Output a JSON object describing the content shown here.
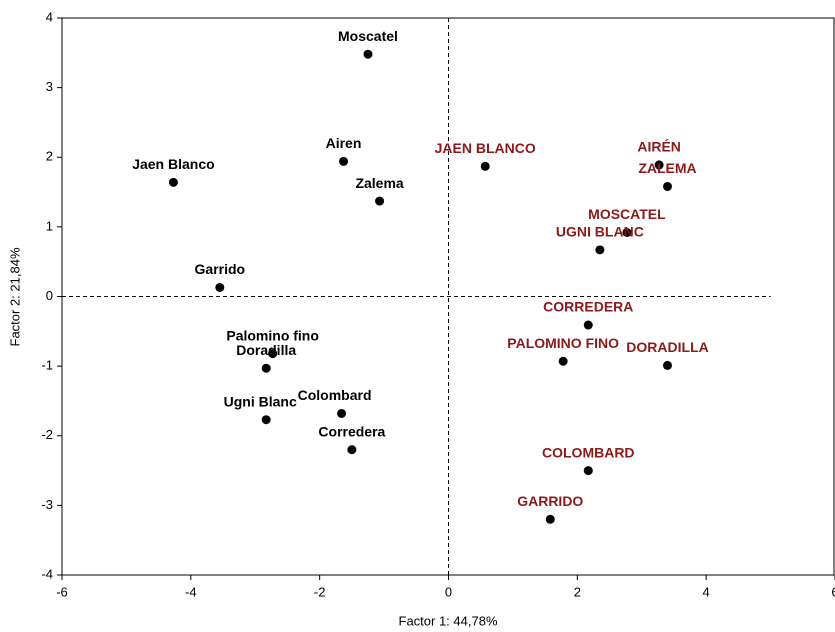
{
  "chart_data": {
    "type": "scatter",
    "xlabel": "Factor 1: 44,78%",
    "ylabel": "Factor 2: 21,84%",
    "xlim": [
      -6,
      6
    ],
    "ylim": [
      -4,
      4
    ],
    "xticks": [
      -6,
      -4,
      -2,
      0,
      2,
      4,
      6
    ],
    "yticks": [
      -4,
      -3,
      -2,
      -1,
      0,
      1,
      2,
      3,
      4
    ],
    "series": [
      {
        "color": "#000000",
        "labels": [
          "Moscatel",
          "Airen",
          "Zalema",
          "Jaen Blanco",
          "Garrido",
          "Palomino fino",
          "Doradilla",
          "Ugni Blanc",
          "Colombard",
          "Corredera"
        ],
        "x": [
          -1.25,
          -1.63,
          -1.07,
          -4.27,
          -3.55,
          -2.73,
          -2.83,
          -2.83,
          -1.66,
          -1.5
        ],
        "values": [
          3.48,
          1.94,
          1.37,
          1.64,
          0.13,
          -0.82,
          -1.03,
          -1.77,
          -1.68,
          -2.2
        ]
      },
      {
        "color": "#8b1a1a",
        "labels": [
          "JAEN BLANCO",
          "AIRÉN",
          "ZALEMA",
          "MOSCATEL",
          "UGNI BLANC",
          "CORREDERA",
          "PALOMINO FINO",
          "DORADILLA",
          "COLOMBARD",
          "GARRIDO"
        ],
        "x": [
          0.57,
          3.27,
          3.4,
          2.77,
          2.35,
          2.17,
          1.78,
          3.4,
          2.17,
          1.58
        ],
        "values": [
          1.87,
          1.89,
          1.58,
          0.92,
          0.67,
          -0.41,
          -0.93,
          -0.99,
          -2.5,
          -3.2
        ]
      }
    ]
  }
}
